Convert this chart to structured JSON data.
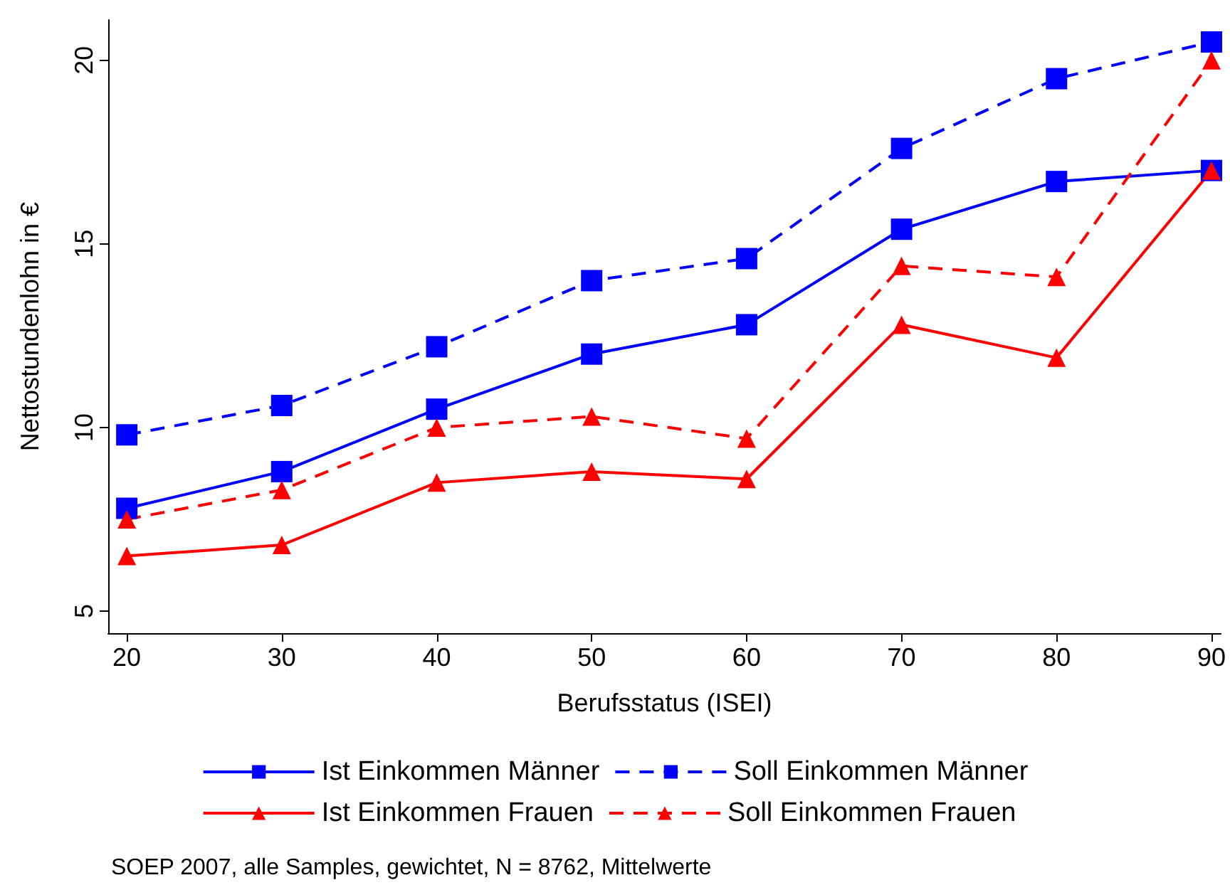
{
  "chart_data": {
    "type": "line",
    "xlabel": "Berufsstatus (ISEI)",
    "ylabel": "Nettostundenlohn in €",
    "x": [
      20,
      30,
      40,
      50,
      60,
      70,
      80,
      90
    ],
    "xlim": [
      18.8,
      90.6
    ],
    "xticks": [
      20,
      30,
      40,
      50,
      60,
      70,
      80,
      90
    ],
    "ylim": [
      4.4,
      21.1
    ],
    "yticks": [
      5,
      10,
      15,
      20
    ],
    "grid": false,
    "legend": "bottom",
    "series": [
      {
        "name": "Ist Einkommen Männer",
        "color": "#0000ff",
        "marker": "square",
        "line_style": "solid",
        "values": [
          7.8,
          8.8,
          10.5,
          12.0,
          12.8,
          15.4,
          16.7,
          17.0
        ]
      },
      {
        "name": "Soll Einkommen Männer",
        "color": "#0000ff",
        "marker": "square",
        "line_style": "dashed",
        "values": [
          9.8,
          10.6,
          12.2,
          14.0,
          14.6,
          17.6,
          19.5,
          20.5
        ]
      },
      {
        "name": "Ist Einkommen Frauen",
        "color": "#ff0000",
        "marker": "triangle",
        "line_style": "solid",
        "values": [
          6.5,
          6.8,
          8.5,
          8.8,
          8.6,
          12.8,
          11.9,
          17.0
        ]
      },
      {
        "name": "Soll Einkommen Frauen",
        "color": "#ff0000",
        "marker": "triangle",
        "line_style": "dashed",
        "values": [
          7.5,
          8.3,
          10.0,
          10.3,
          9.7,
          14.4,
          14.1,
          20.0
        ]
      }
    ],
    "annotations": [
      "SOEP 2007, alle Samples, gewichtet, N = 8762, Mittelwerte"
    ]
  }
}
